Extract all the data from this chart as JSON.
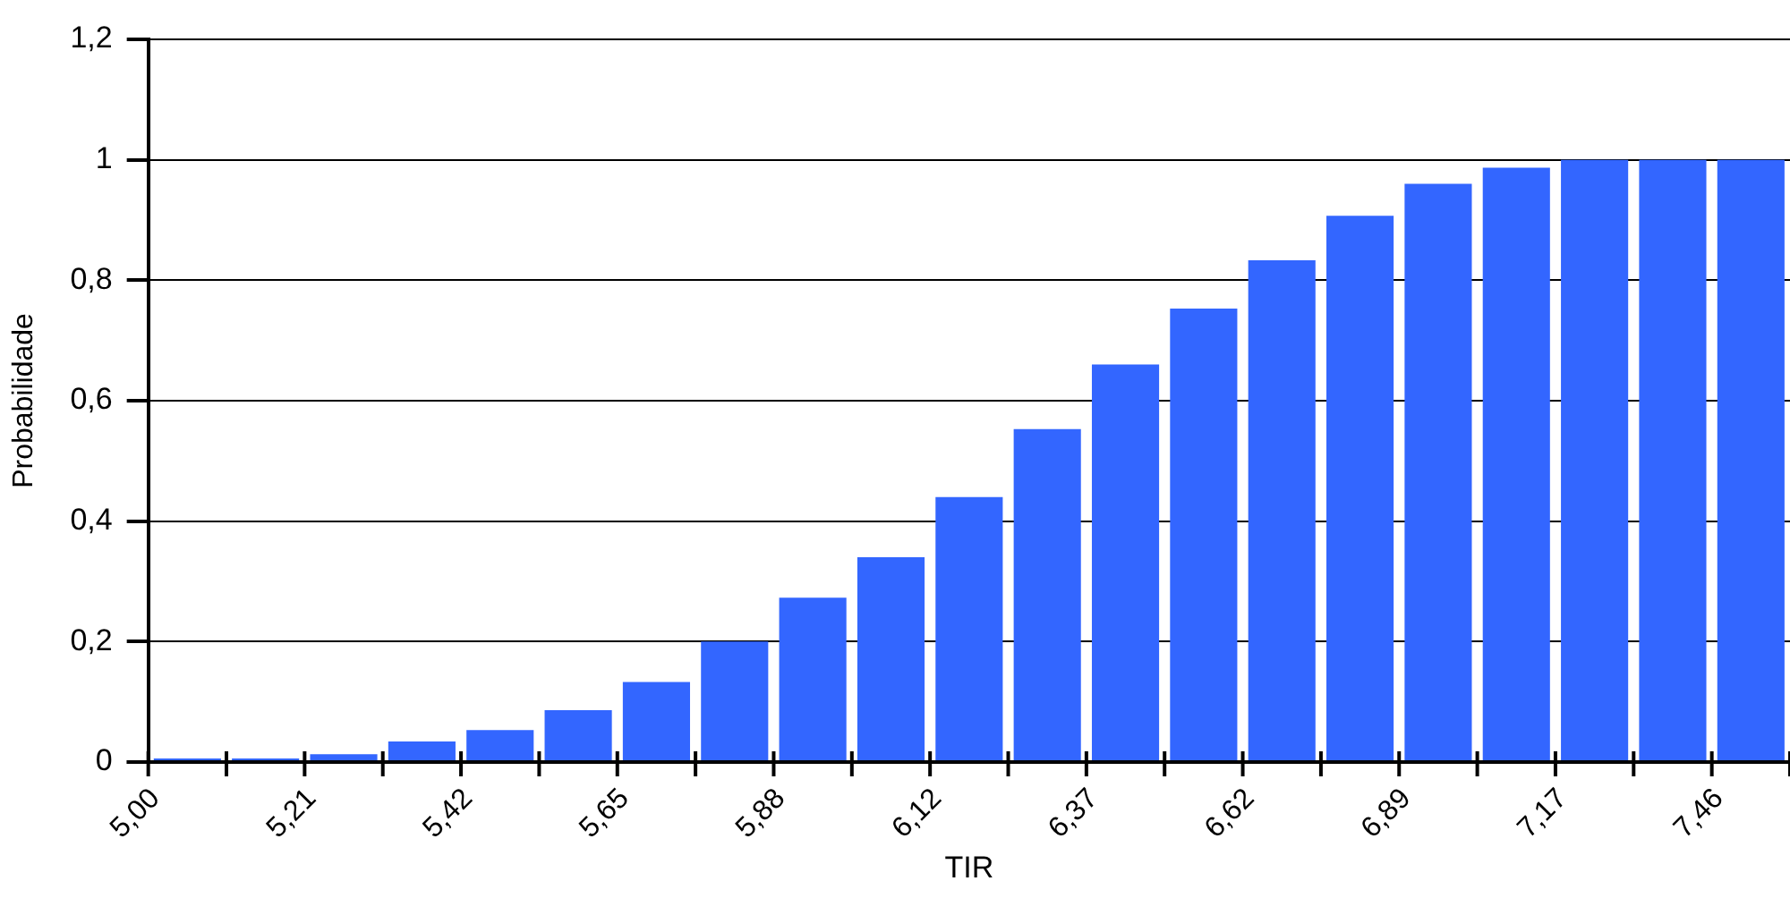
{
  "chart_data": {
    "type": "bar",
    "xlabel": "TIR",
    "ylabel": "Probabilidade",
    "categories": [
      "5,00",
      null,
      "5,21",
      null,
      "5,42",
      null,
      "5,65",
      null,
      "5,88",
      null,
      "6,12",
      null,
      "6,37",
      null,
      "6,62",
      null,
      "6,89",
      null,
      "7,17",
      null,
      "7,46"
    ],
    "values": [
      0.006,
      0.006,
      0.013,
      0.034,
      0.053,
      0.086,
      0.133,
      0.2,
      0.273,
      0.34,
      0.44,
      0.553,
      0.66,
      0.753,
      0.833,
      0.907,
      0.96,
      0.987,
      1,
      1,
      1
    ],
    "color": "#3366ff",
    "ylim": [
      0,
      1.2
    ],
    "yticks": [
      0,
      {
        "value": 0.2,
        "label": "0,2"
      },
      {
        "value": 0.4,
        "label": "0,4"
      },
      {
        "value": 0.6,
        "label": "0,6"
      },
      {
        "value": 0.8,
        "label": "0,8"
      },
      1,
      {
        "value": 1.2,
        "label": "1,2"
      }
    ],
    "grid": "y"
  }
}
